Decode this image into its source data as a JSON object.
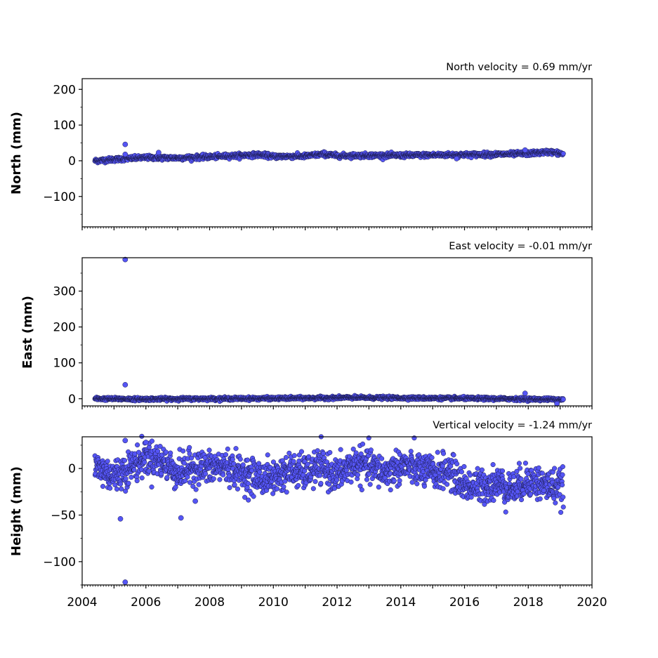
{
  "chart_data": [
    {
      "type": "scatter",
      "title": "North velocity = 0.69 mm/yr",
      "ylabel": "North (mm)",
      "xlim": [
        2004,
        2020
      ],
      "ylim": [
        -185,
        230
      ],
      "yticks": [
        -100,
        0,
        100,
        200
      ],
      "ytick_labels": [
        "−100",
        "0",
        "100",
        "200"
      ],
      "series": [
        {
          "trend": [
            [
              2004.4,
              0
            ],
            [
              2005.2,
              5
            ],
            [
              2006,
              9
            ],
            [
              2007,
              8
            ],
            [
              2008,
              11
            ],
            [
              2009,
              15
            ],
            [
              2009.6,
              17
            ],
            [
              2010,
              12
            ],
            [
              2011,
              13
            ],
            [
              2011.6,
              19
            ],
            [
              2012,
              14
            ],
            [
              2013,
              15
            ],
            [
              2014,
              15
            ],
            [
              2015,
              16
            ],
            [
              2016,
              17
            ],
            [
              2017,
              18
            ],
            [
              2018,
              20
            ],
            [
              2018.7,
              25
            ],
            [
              2019.1,
              19
            ]
          ],
          "noise": 3,
          "outliers": [
            [
              2005.35,
              46
            ],
            [
              2005.35,
              18
            ],
            [
              2006.4,
              23
            ],
            [
              2015.75,
              6
            ],
            [
              2017.9,
              30
            ]
          ]
        }
      ]
    },
    {
      "type": "scatter",
      "title": "East velocity = -0.01 mm/yr",
      "ylabel": "East (mm)",
      "xlim": [
        2004,
        2020
      ],
      "ylim": [
        -20,
        393
      ],
      "yticks": [
        0,
        100,
        200,
        300
      ],
      "ytick_labels": [
        "0",
        "100",
        "200",
        "300"
      ],
      "series": [
        {
          "trend": [
            [
              2004.4,
              0
            ],
            [
              2006,
              -1
            ],
            [
              2008,
              0
            ],
            [
              2010,
              1
            ],
            [
              2011.5,
              2
            ],
            [
              2012.5,
              3
            ],
            [
              2014,
              2
            ],
            [
              2016,
              1
            ],
            [
              2018,
              -1
            ],
            [
              2019.1,
              -2
            ]
          ],
          "noise": 2,
          "outliers": [
            [
              2005.35,
              388
            ],
            [
              2005.35,
              39
            ],
            [
              2017.9,
              15
            ],
            [
              2018.9,
              -14
            ]
          ]
        }
      ]
    },
    {
      "type": "scatter",
      "title": "Vertical velocity = -1.24 mm/yr",
      "ylabel": "Height (mm)",
      "xlim": [
        2004,
        2020
      ],
      "ylim": [
        -125,
        34
      ],
      "yticks": [
        -100,
        -50,
        0
      ],
      "ytick_labels": [
        "−100",
        "−50",
        "0"
      ],
      "xticks": [
        2004,
        2006,
        2008,
        2010,
        2012,
        2014,
        2016,
        2018,
        2020
      ],
      "xtick_labels": [
        "2004",
        "2006",
        "2008",
        "2010",
        "2012",
        "2014",
        "2016",
        "2018",
        "2020"
      ],
      "series": [
        {
          "trend": [
            [
              2004.4,
              2
            ],
            [
              2005,
              -8
            ],
            [
              2005.6,
              3
            ],
            [
              2006,
              12
            ],
            [
              2006.5,
              8
            ],
            [
              2007,
              -5
            ],
            [
              2007.5,
              2
            ],
            [
              2008,
              0
            ],
            [
              2008.5,
              3
            ],
            [
              2009,
              -5
            ],
            [
              2009.6,
              -10
            ],
            [
              2010,
              -10
            ],
            [
              2010.5,
              -2
            ],
            [
              2011,
              -5
            ],
            [
              2011.5,
              2
            ],
            [
              2012,
              -8
            ],
            [
              2012.5,
              5
            ],
            [
              2013,
              3
            ],
            [
              2013.5,
              -5
            ],
            [
              2014,
              3
            ],
            [
              2014.5,
              0
            ],
            [
              2015,
              -5
            ],
            [
              2015.5,
              -2
            ],
            [
              2016,
              -18
            ],
            [
              2016.5,
              -20
            ],
            [
              2017,
              -15
            ],
            [
              2017.5,
              -22
            ],
            [
              2018,
              -12
            ],
            [
              2018.5,
              -18
            ],
            [
              2019.1,
              -20
            ]
          ],
          "noise": 9,
          "outliers": [
            [
              2005.35,
              30
            ],
            [
              2005.35,
              -122
            ],
            [
              2005.2,
              -54
            ],
            [
              2007.1,
              -53
            ],
            [
              2007.55,
              -35
            ],
            [
              2006.0,
              28
            ]
          ]
        }
      ]
    }
  ],
  "style": {
    "marker_fill": "#5555f5",
    "marker_edge": "#1a1a4a",
    "axis_color": "#000000"
  }
}
